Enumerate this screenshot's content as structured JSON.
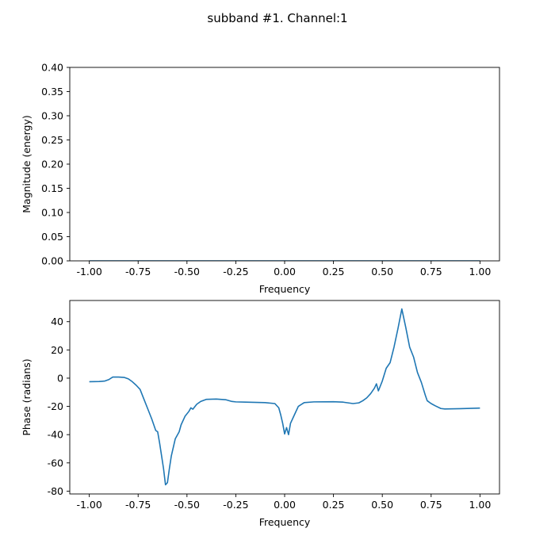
{
  "figure": {
    "title": "subband #1. Channel:1"
  },
  "chart_data": [
    {
      "type": "line",
      "xlabel": "Frequency",
      "ylabel": "Magnitude (energy)",
      "xlim": [
        -1.1,
        1.1
      ],
      "ylim": [
        0.0,
        0.4
      ],
      "xticks": [
        "-1.00",
        "-0.75",
        "-0.50",
        "-0.25",
        "0.00",
        "0.25",
        "0.50",
        "0.75",
        "1.00"
      ],
      "yticks": [
        "0.00",
        "0.05",
        "0.10",
        "0.15",
        "0.20",
        "0.25",
        "0.30",
        "0.35",
        "0.40"
      ],
      "grid": false,
      "color": "#1f77b4",
      "series": [
        {
          "x": [
            -1.0,
            1.0
          ],
          "y": [
            0.0,
            0.0
          ]
        }
      ]
    },
    {
      "type": "line",
      "xlabel": "Frequency",
      "ylabel": "Phase (radians)",
      "xlim": [
        -1.1,
        1.1
      ],
      "ylim": [
        -82,
        55
      ],
      "xticks": [
        "-1.00",
        "-0.75",
        "-0.50",
        "-0.25",
        "0.00",
        "0.25",
        "0.50",
        "0.75",
        "1.00"
      ],
      "yticks": [
        "-80",
        "-60",
        "-40",
        "-20",
        "0",
        "20",
        "40"
      ],
      "grid": false,
      "color": "#1f77b4",
      "series": [
        {
          "x": [
            -1.0,
            -0.95,
            -0.92,
            -0.9,
            -0.88,
            -0.85,
            -0.82,
            -0.8,
            -0.78,
            -0.76,
            -0.74,
            -0.72,
            -0.7,
            -0.68,
            -0.66,
            -0.65,
            -0.64,
            -0.63,
            -0.62,
            -0.61,
            -0.6,
            -0.59,
            -0.58,
            -0.56,
            -0.54,
            -0.53,
            -0.51,
            -0.49,
            -0.48,
            -0.47,
            -0.45,
            -0.43,
            -0.4,
            -0.35,
            -0.3,
            -0.27,
            -0.25,
            -0.2,
            -0.1,
            -0.05,
            -0.03,
            -0.02,
            -0.01,
            0.0,
            0.01,
            0.02,
            0.03,
            0.05,
            0.07,
            0.1,
            0.15,
            0.25,
            0.3,
            0.35,
            0.38,
            0.4,
            0.42,
            0.44,
            0.46,
            0.47,
            0.48,
            0.5,
            0.52,
            0.54,
            0.56,
            0.58,
            0.6,
            0.62,
            0.64,
            0.66,
            0.68,
            0.7,
            0.72,
            0.73,
            0.75,
            0.77,
            0.8,
            0.82,
            0.9,
            1.0
          ],
          "y": [
            -2.5,
            -2.4,
            -2.0,
            -1.0,
            0.8,
            0.8,
            0.5,
            -0.5,
            -2.5,
            -5.0,
            -8.0,
            -15.0,
            -22.0,
            -29.0,
            -37.0,
            -38.0,
            -46.0,
            -55.0,
            -64.0,
            -75.5,
            -74.0,
            -64.0,
            -55.0,
            -43.0,
            -38.0,
            -33.0,
            -27.0,
            -23.5,
            -21.0,
            -22.0,
            -18.5,
            -16.5,
            -15.0,
            -14.8,
            -15.3,
            -16.5,
            -16.8,
            -17.0,
            -17.3,
            -18.0,
            -21.0,
            -26.0,
            -32.0,
            -39.5,
            -35.0,
            -40.0,
            -32.0,
            -26.0,
            -20.0,
            -17.3,
            -16.8,
            -16.7,
            -17.0,
            -18.0,
            -17.5,
            -16.0,
            -14.0,
            -11.0,
            -7.0,
            -4.0,
            -9.0,
            -2.0,
            7.0,
            11.0,
            22.0,
            35.0,
            49.0,
            36.0,
            22.0,
            15.0,
            4.0,
            -3.0,
            -12.0,
            -16.0,
            -18.0,
            -19.5,
            -21.5,
            -21.8,
            -21.6,
            -21.2
          ]
        }
      ]
    }
  ]
}
